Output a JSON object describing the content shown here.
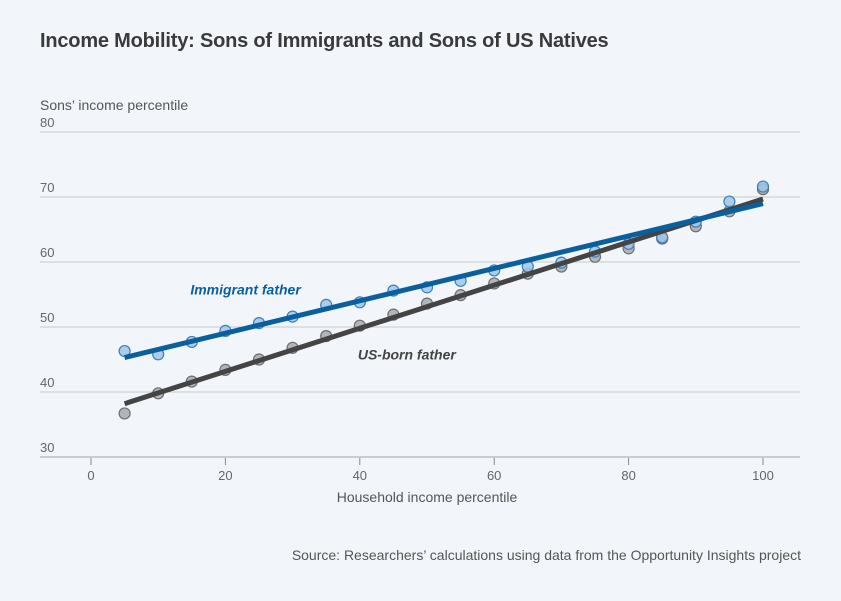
{
  "chart_data": {
    "type": "scatter",
    "title": "Income Mobility: Sons of Immigrants and Sons of US Natives",
    "xlabel": "Household income percentile",
    "ylabel": "Sons’ income percentile",
    "xlim": [
      0,
      100
    ],
    "ylim": [
      30,
      80
    ],
    "xticks": [
      0,
      20,
      40,
      60,
      80,
      100
    ],
    "yticks": [
      30,
      40,
      50,
      60,
      70,
      80
    ],
    "grid": "horizontal",
    "x": [
      5,
      10,
      15,
      20,
      25,
      30,
      35,
      40,
      45,
      50,
      55,
      60,
      65,
      70,
      75,
      80,
      85,
      90,
      95,
      100
    ],
    "series": [
      {
        "name": "Immigrant father",
        "color": "#0a5f9e",
        "marker_fill": "#9fc4e6",
        "values": [
          46.3,
          45.8,
          47.7,
          49.4,
          50.6,
          51.6,
          53.4,
          53.8,
          55.6,
          56.1,
          57.1,
          58.7,
          59.3,
          59.9,
          61.6,
          62.8,
          63.8,
          66.2,
          69.3,
          71.6
        ],
        "fit_line": {
          "x": [
            5,
            100
          ],
          "y": [
            45.3,
            69.0
          ]
        }
      },
      {
        "name": "US-born father",
        "color": "#444444",
        "marker_fill": "#b3b5b8",
        "values": [
          36.7,
          39.8,
          41.6,
          43.4,
          45.0,
          46.8,
          48.6,
          50.2,
          51.9,
          53.6,
          54.9,
          56.7,
          58.2,
          59.3,
          60.8,
          62.1,
          63.6,
          65.5,
          67.8,
          71.2
        ],
        "fit_line": {
          "x": [
            5,
            100
          ],
          "y": [
            38.2,
            69.7
          ]
        }
      }
    ],
    "annotations": [
      {
        "text": "Immigrant father",
        "x": 23,
        "y": 55
      },
      {
        "text": "US-born father",
        "x": 47,
        "y": 45
      }
    ],
    "source": "Source: Researchers’ calculations using data from the Opportunity Insights project"
  }
}
